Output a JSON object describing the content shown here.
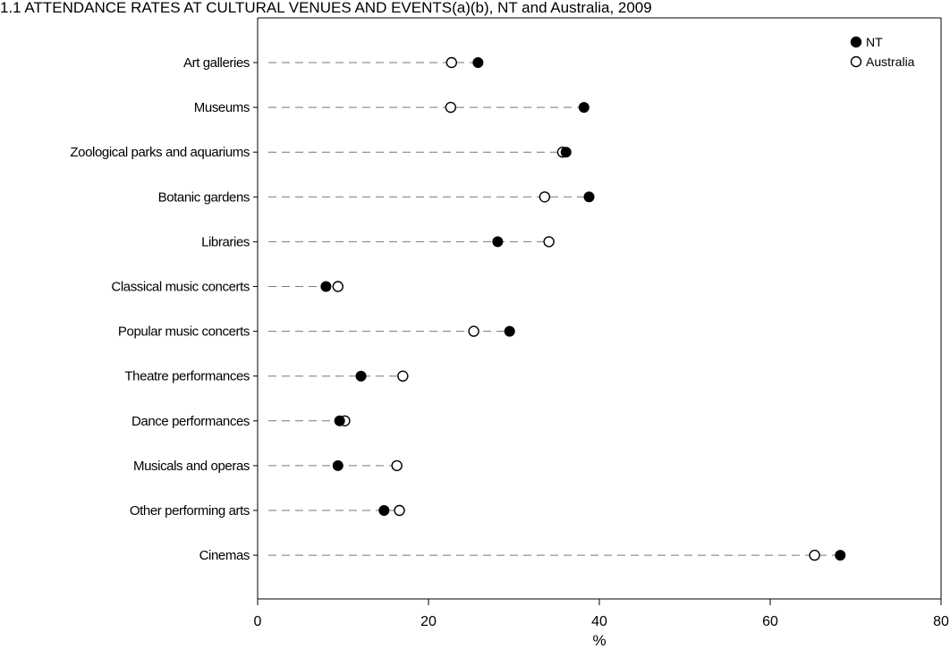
{
  "chart_data": {
    "type": "scatter",
    "title": "1.1 ATTENDANCE RATES AT CULTURAL VENUES AND EVENTS(a)(b), NT and Australia, 2009",
    "xlabel": "%",
    "ylabel": "",
    "xlim": [
      0,
      80
    ],
    "xticks": [
      0,
      20,
      40,
      60,
      80
    ],
    "grid": false,
    "legend_position": "top-right",
    "categories": [
      "Art galleries",
      "Museums",
      "Zoological parks and aquariums",
      "Botanic gardens",
      "Libraries",
      "Classical music concerts",
      "Popular music concerts",
      "Theatre performances",
      "Dance performances",
      "Musicals and operas",
      "Other performing arts",
      "Cinemas"
    ],
    "series": [
      {
        "name": "NT",
        "marker": "filled-circle",
        "color": "#000000",
        "values": [
          25.8,
          38.2,
          36.1,
          38.8,
          28.1,
          8.0,
          29.5,
          12.1,
          9.6,
          9.4,
          14.8,
          68.2
        ]
      },
      {
        "name": "Australia",
        "marker": "open-circle",
        "color": "#000000",
        "values": [
          22.7,
          22.6,
          35.7,
          33.6,
          34.1,
          9.4,
          25.3,
          17.0,
          10.2,
          16.3,
          16.6,
          65.2
        ]
      }
    ]
  }
}
